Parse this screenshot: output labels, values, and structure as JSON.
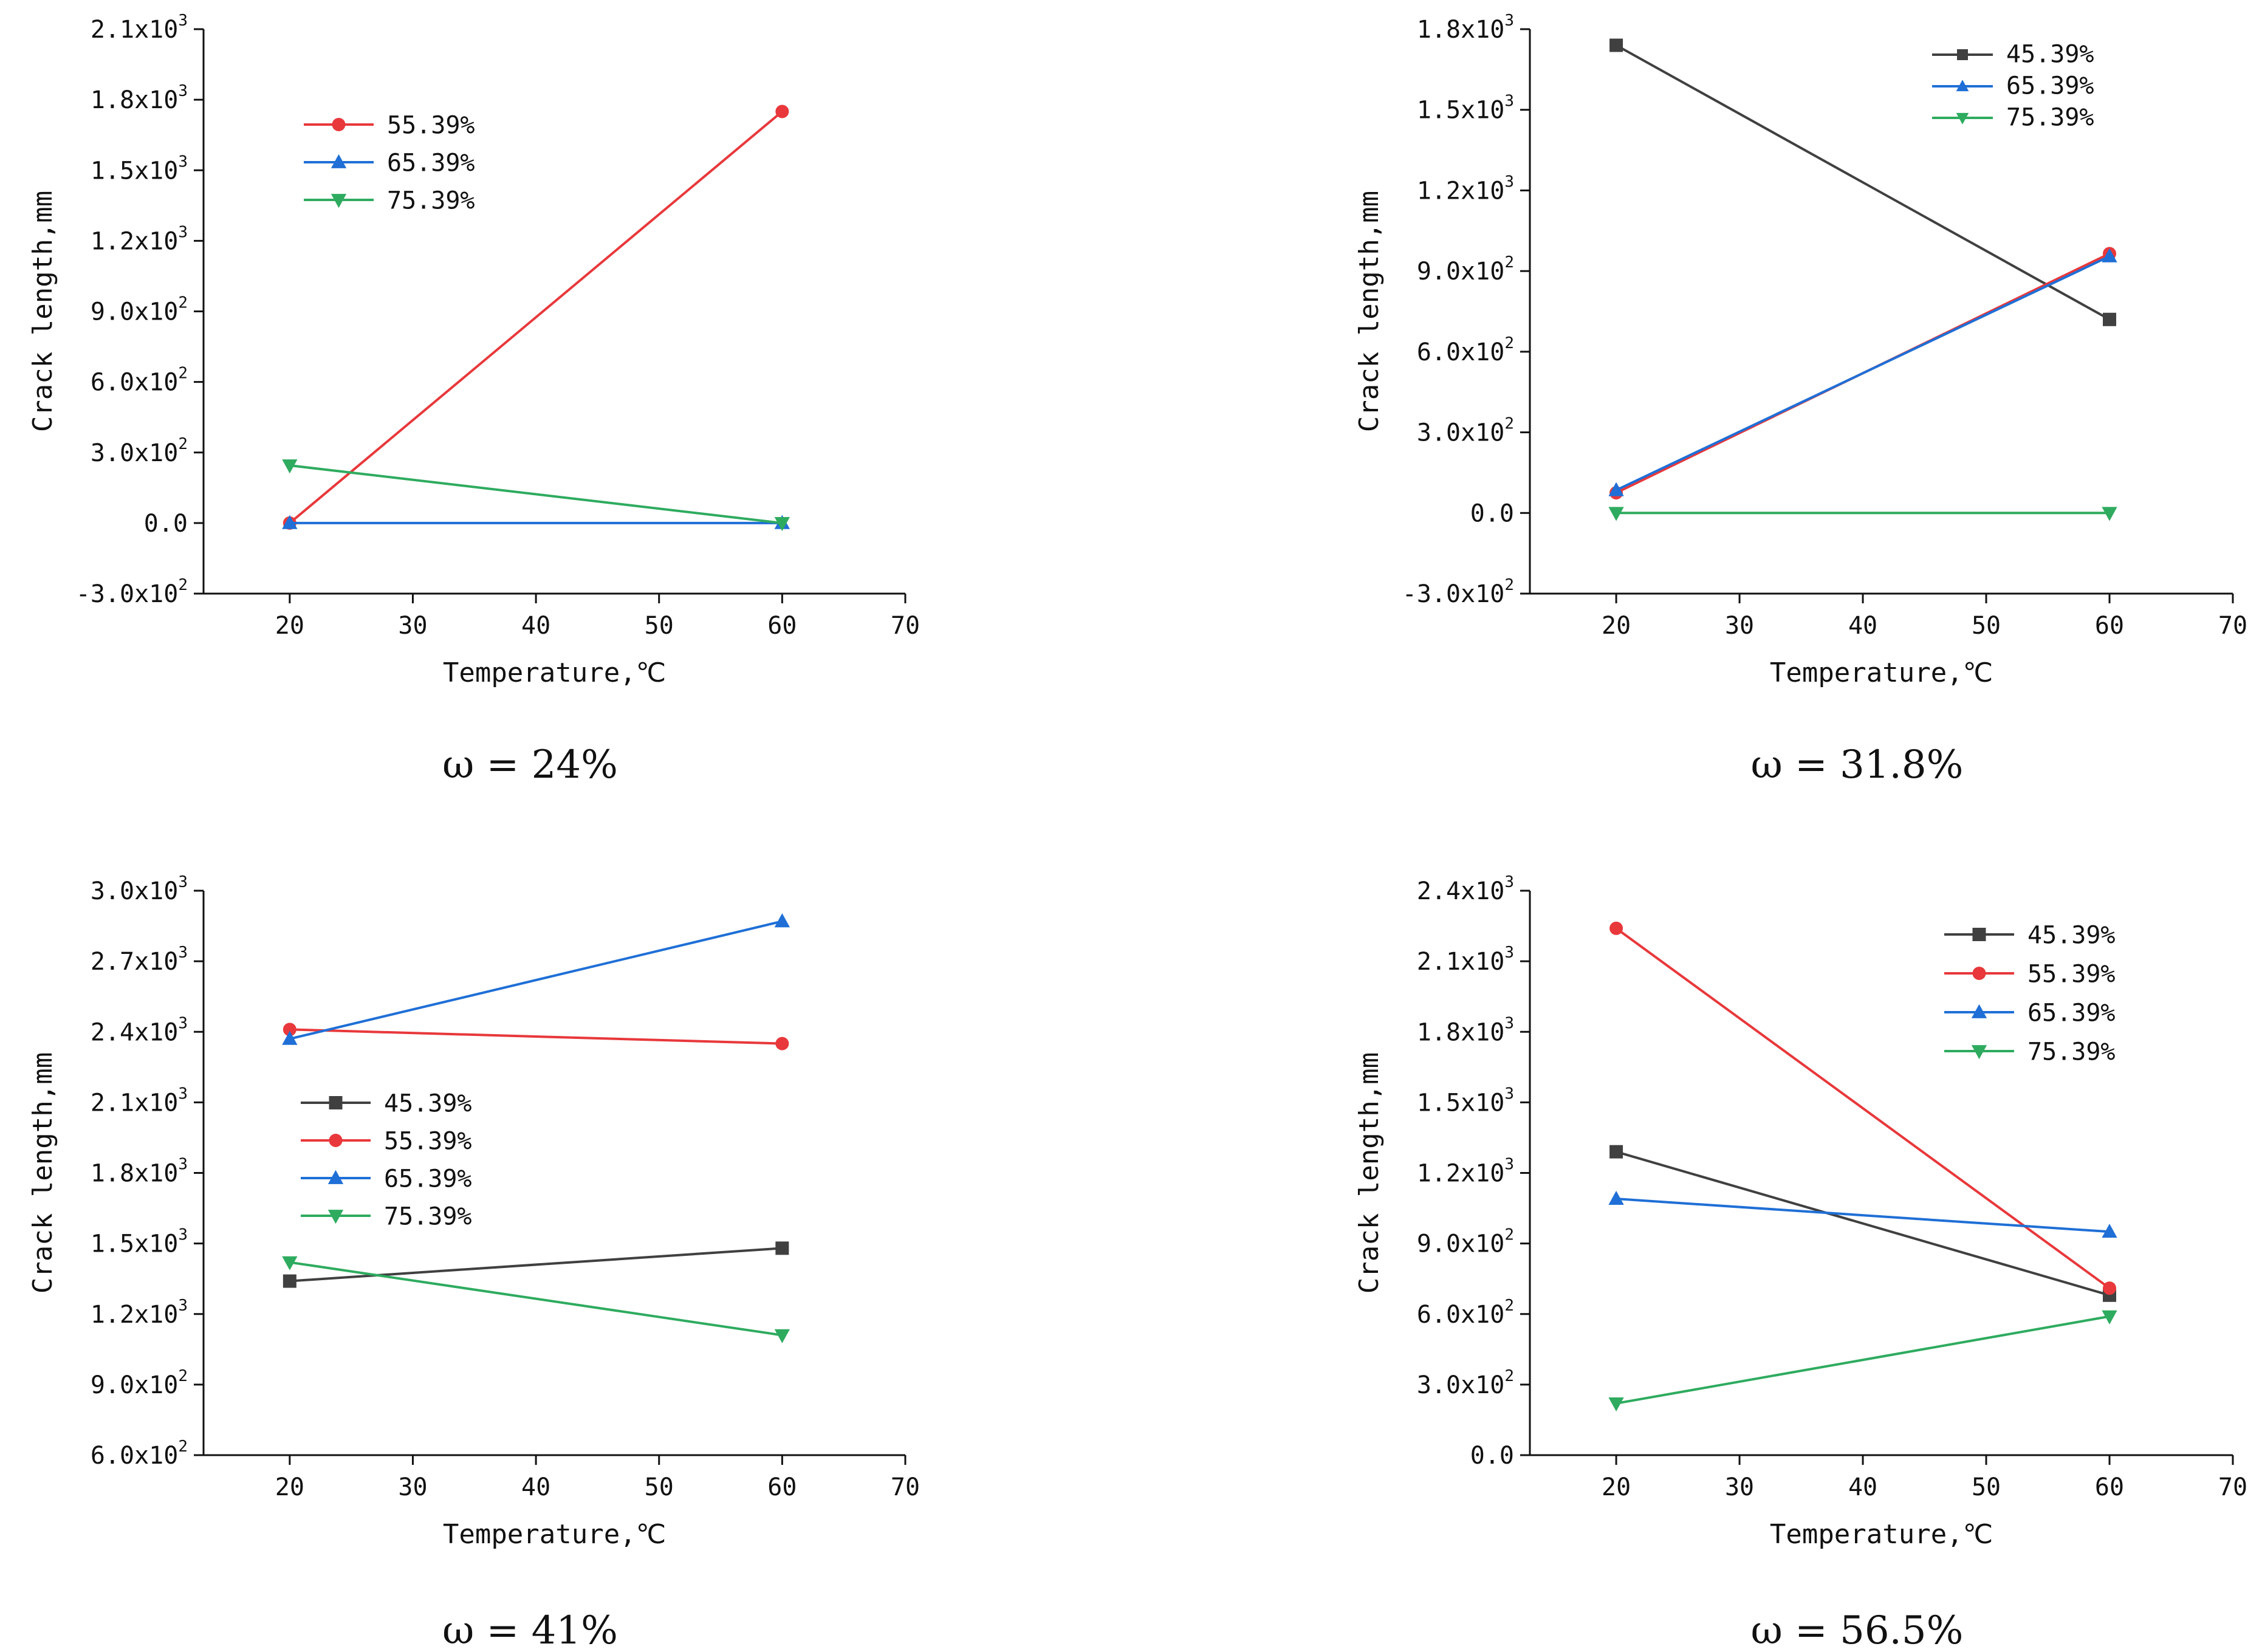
{
  "chart_data": [
    {
      "type": "line",
      "caption": "ω = 24%",
      "xlabel": "Temperature,℃",
      "ylabel": "Crack length,mm",
      "xlim": [
        13,
        70
      ],
      "xticks": [
        20,
        30,
        40,
        50,
        60,
        70
      ],
      "ylim": [
        -300,
        2100
      ],
      "yticks": [
        -300,
        0,
        300,
        600,
        900,
        1200,
        1500,
        1800,
        2100
      ],
      "ytick_labels": [
        "-3.0x10^2",
        "0.0",
        "3.0x10^2",
        "6.0x10^2",
        "9.0x10^2",
        "1.2x10^3",
        "1.5x10^3",
        "1.8x10^3",
        "2.1x10^3"
      ],
      "legend_position": "upper-left",
      "x": [
        20,
        60
      ],
      "series": [
        {
          "name": "55.39%",
          "color": "#e8383b",
          "marker": "circle",
          "values": [
            0,
            1750
          ]
        },
        {
          "name": "65.39%",
          "color": "#1f6fd6",
          "marker": "triangle-up",
          "values": [
            0,
            0
          ]
        },
        {
          "name": "75.39%",
          "color": "#2eab5f",
          "marker": "triangle-down",
          "values": [
            245,
            0
          ]
        }
      ]
    },
    {
      "type": "line",
      "caption": "ω = 31.8%",
      "xlabel": "Temperature,℃",
      "ylabel": "Crack length,mm",
      "xlim": [
        13,
        70
      ],
      "xticks": [
        20,
        30,
        40,
        50,
        60,
        70
      ],
      "ylim": [
        -300,
        1800
      ],
      "yticks": [
        -300,
        0,
        300,
        600,
        900,
        1200,
        1500,
        1800
      ],
      "ytick_labels": [
        "-3.0x10^2",
        "0.0",
        "3.0x10^2",
        "6.0x10^2",
        "9.0x10^2",
        "1.2x10^3",
        "1.5x10^3",
        "1.8x10^3"
      ],
      "legend_position": "upper-right",
      "x": [
        20,
        60
      ],
      "series": [
        {
          "name": "45.39%",
          "color": "#404040",
          "marker": "square",
          "values": [
            1740,
            720
          ]
        },
        {
          "name": "",
          "color": "#e8383b",
          "marker": "circle",
          "values": [
            75,
            965
          ]
        },
        {
          "name": "65.39%",
          "color": "#1f6fd6",
          "marker": "triangle-up",
          "values": [
            85,
            955
          ]
        },
        {
          "name": "75.39%",
          "color": "#2eab5f",
          "marker": "triangle-down",
          "values": [
            0,
            0
          ]
        }
      ]
    },
    {
      "type": "line",
      "caption": "ω = 41%",
      "xlabel": "Temperature,℃",
      "ylabel": "Crack length,mm",
      "xlim": [
        13,
        70
      ],
      "xticks": [
        20,
        30,
        40,
        50,
        60,
        70
      ],
      "ylim": [
        600,
        3000
      ],
      "yticks": [
        600,
        900,
        1200,
        1500,
        1800,
        2100,
        2400,
        2700,
        3000
      ],
      "ytick_labels": [
        "6.0x10^2",
        "9.0x10^2",
        "1.2x10^3",
        "1.5x10^3",
        "1.8x10^3",
        "2.1x10^3",
        "2.4x10^3",
        "2.7x10^3",
        "3.0x10^3"
      ],
      "legend_position": "middle-left",
      "x": [
        20,
        60
      ],
      "series": [
        {
          "name": "45.39%",
          "color": "#404040",
          "marker": "square",
          "values": [
            1340,
            1480
          ]
        },
        {
          "name": "55.39%",
          "color": "#e8383b",
          "marker": "circle",
          "values": [
            2410,
            2350
          ]
        },
        {
          "name": "65.39%",
          "color": "#1f6fd6",
          "marker": "triangle-up",
          "values": [
            2370,
            2870
          ]
        },
        {
          "name": "75.39%",
          "color": "#2eab5f",
          "marker": "triangle-down",
          "values": [
            1420,
            1110
          ]
        }
      ]
    },
    {
      "type": "line",
      "caption": "ω = 56.5%",
      "xlabel": "Temperature,℃",
      "ylabel": "Crack length,mm",
      "xlim": [
        13,
        70
      ],
      "xticks": [
        20,
        30,
        40,
        50,
        60,
        70
      ],
      "ylim": [
        0,
        2400
      ],
      "yticks": [
        0,
        300,
        600,
        900,
        1200,
        1500,
        1800,
        2100,
        2400
      ],
      "ytick_labels": [
        "0.0",
        "3.0x10^2",
        "6.0x10^2",
        "9.0x10^2",
        "1.2x10^3",
        "1.5x10^3",
        "1.8x10^3",
        "2.1x10^3",
        "2.4x10^3"
      ],
      "legend_position": "upper-right",
      "x": [
        20,
        60
      ],
      "series": [
        {
          "name": "45.39%",
          "color": "#404040",
          "marker": "square",
          "values": [
            1290,
            680
          ]
        },
        {
          "name": "55.39%",
          "color": "#e8383b",
          "marker": "circle",
          "values": [
            2240,
            710
          ]
        },
        {
          "name": "65.39%",
          "color": "#1f6fd6",
          "marker": "triangle-up",
          "values": [
            1090,
            950
          ]
        },
        {
          "name": "75.39%",
          "color": "#2eab5f",
          "marker": "triangle-down",
          "values": [
            220,
            590
          ]
        }
      ]
    }
  ]
}
